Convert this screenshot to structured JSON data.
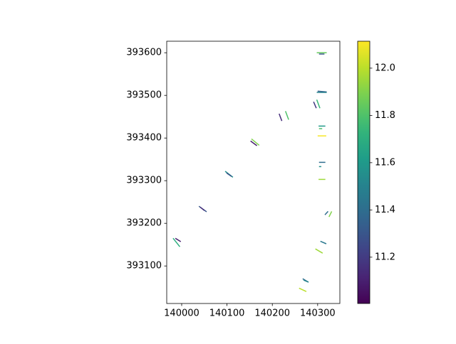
{
  "chart_data": {
    "type": "segments",
    "cmap": "viridis",
    "xlim": [
      139967,
      140349
    ],
    "ylim": [
      393012,
      393627
    ],
    "xticks": [
      140000,
      140100,
      140200,
      140300
    ],
    "yticks": [
      393100,
      393200,
      393300,
      393400,
      393500,
      393600
    ],
    "clim": [
      11.004,
      12.114
    ],
    "cticks": [
      11.2,
      11.4,
      11.6,
      11.8,
      {
        "value": 12,
        "label": "12.0"
      }
    ],
    "segments": [
      {
        "x": [
          139981,
          139996
        ],
        "y": [
          393165,
          393145
        ],
        "value": 11.7
      },
      {
        "x": [
          139986,
          139998
        ],
        "y": [
          393165,
          393157
        ],
        "value": 11.1
      },
      {
        "x": [
          140038,
          140055
        ],
        "y": [
          393240,
          393227
        ],
        "value": 11.3
      },
      {
        "x": [
          140041,
          140050
        ],
        "y": [
          393238,
          393230
        ],
        "value": 11.15
      },
      {
        "x": [
          140096,
          140113
        ],
        "y": [
          393322,
          393308
        ],
        "value": 11.55
      },
      {
        "x": [
          140099,
          140110
        ],
        "y": [
          393318,
          393310
        ],
        "value": 11.3
      },
      {
        "x": [
          140154,
          140171
        ],
        "y": [
          393398,
          393383
        ],
        "value": 11.9
      },
      {
        "x": [
          140152,
          140166
        ],
        "y": [
          393393,
          393382
        ],
        "value": 11.1
      },
      {
        "x": [
          140215,
          140221
        ],
        "y": [
          393457,
          393440
        ],
        "value": 11.15
      },
      {
        "x": [
          140229,
          140236
        ],
        "y": [
          393463,
          393443
        ],
        "value": 11.8
      },
      {
        "x": [
          140291,
          140297
        ],
        "y": [
          393485,
          393470
        ],
        "value": 11.2
      },
      {
        "x": [
          140298,
          140305
        ],
        "y": [
          393490,
          393470
        ],
        "value": 11.75
      },
      {
        "x": [
          140300,
          140320
        ],
        "y": [
          393510,
          393508
        ],
        "value": 11.35
      },
      {
        "x": [
          140298,
          140320
        ],
        "y": [
          393507,
          393507
        ],
        "value": 11.5
      },
      {
        "x": [
          140302,
          140317
        ],
        "y": [
          393428,
          393428
        ],
        "value": 11.6
      },
      {
        "x": [
          140303,
          140310
        ],
        "y": [
          393422,
          393422
        ],
        "value": 11.8
      },
      {
        "x": [
          140300,
          140319
        ],
        "y": [
          393405,
          393405
        ],
        "value": 12.1
      },
      {
        "x": [
          140303,
          140317
        ],
        "y": [
          393343,
          393343
        ],
        "value": 11.4
      },
      {
        "x": [
          140303,
          140308
        ],
        "y": [
          393333,
          393333
        ],
        "value": 11.55
      },
      {
        "x": [
          140302,
          140317
        ],
        "y": [
          393303,
          393303
        ],
        "value": 11.95
      },
      {
        "x": [
          140316,
          140323
        ],
        "y": [
          393220,
          393228
        ],
        "value": 11.4
      },
      {
        "x": [
          140325,
          140331
        ],
        "y": [
          393215,
          393228
        ],
        "value": 11.9
      },
      {
        "x": [
          140306,
          140319
        ],
        "y": [
          393158,
          393152
        ],
        "value": 11.45
      },
      {
        "x": [
          140295,
          140311
        ],
        "y": [
          393140,
          393130
        ],
        "value": 11.95
      },
      {
        "x": [
          140267,
          140278
        ],
        "y": [
          393070,
          393063
        ],
        "value": 11.4
      },
      {
        "x": [
          140269,
          140280
        ],
        "y": [
          393067,
          393062
        ],
        "value": 11.5
      },
      {
        "x": [
          140259,
          140275
        ],
        "y": [
          393048,
          393040
        ],
        "value": 12.0
      },
      {
        "x": [
          140298,
          140320
        ],
        "y": [
          393600,
          393600
        ],
        "value": 11.85
      },
      {
        "x": [
          140303,
          140315
        ],
        "y": [
          393597,
          393597
        ],
        "value": 11.3
      }
    ]
  }
}
